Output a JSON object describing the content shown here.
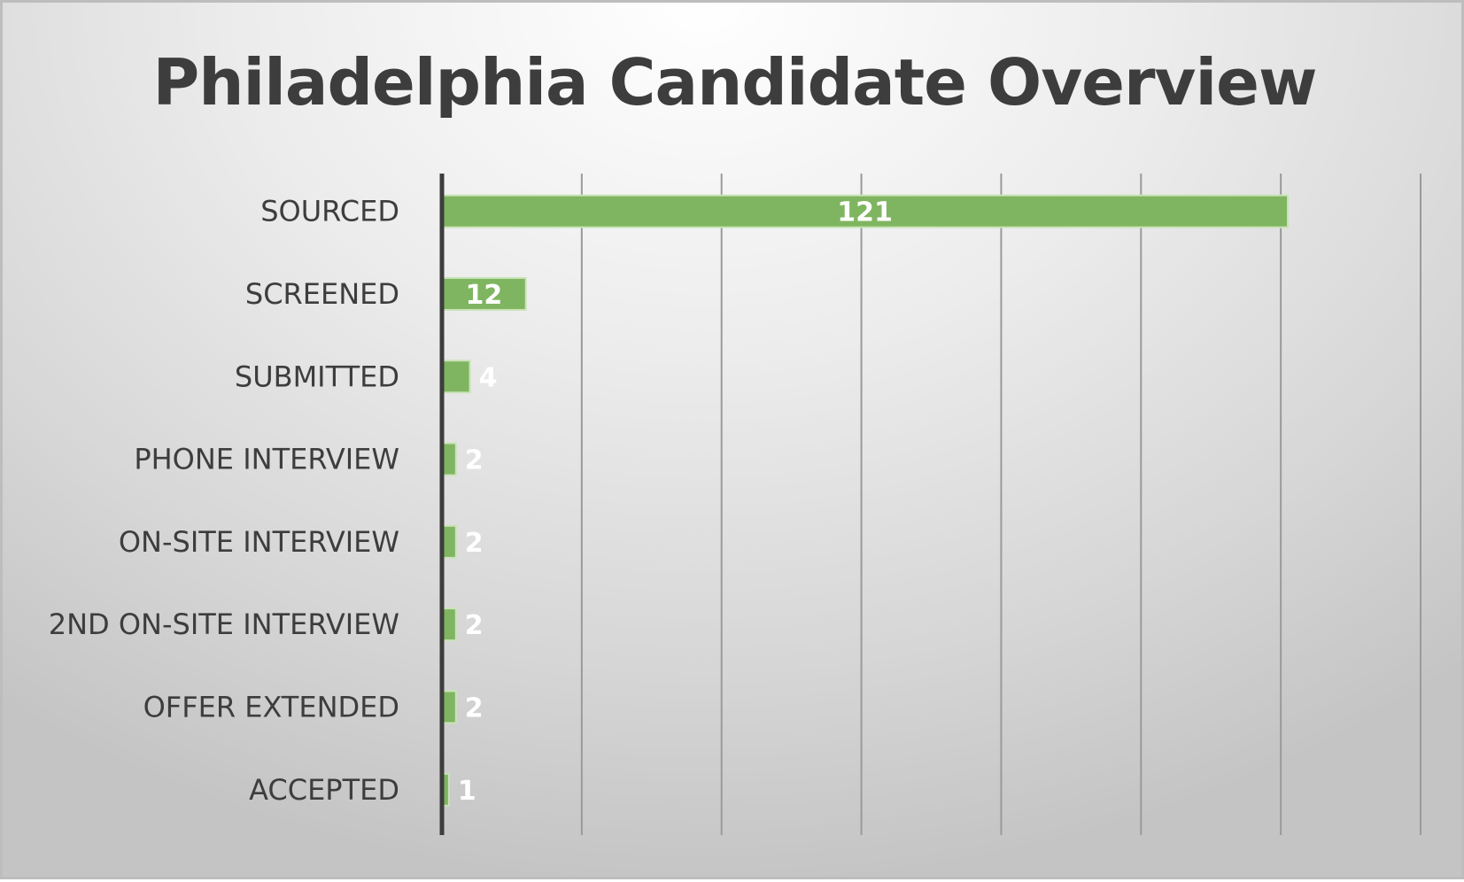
{
  "chart_data": {
    "type": "bar",
    "orientation": "horizontal",
    "title": "Philadelphia Candidate Overview",
    "categories": [
      "SOURCED",
      "SCREENED",
      "SUBMITTED",
      "PHONE INTERVIEW",
      "ON-SITE INTERVIEW",
      "2ND ON-SITE INTERVIEW",
      "OFFER EXTENDED",
      "ACCEPTED"
    ],
    "values": [
      121,
      12,
      4,
      2,
      2,
      2,
      2,
      1
    ],
    "xlim": [
      0,
      140
    ],
    "x_grid_step": 20,
    "grid": true,
    "legend": "none",
    "bar_color": "#7fb560",
    "xlabel": "",
    "ylabel": ""
  }
}
